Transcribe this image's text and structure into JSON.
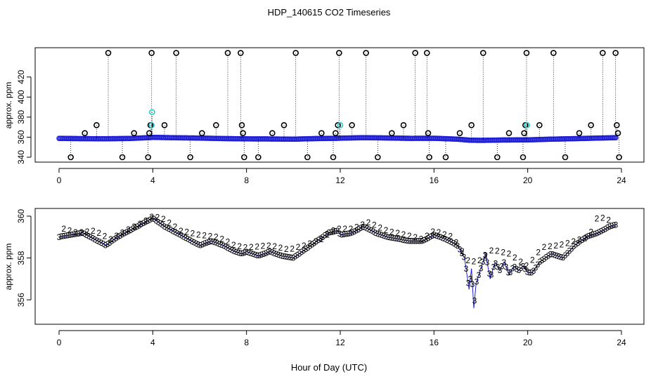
{
  "title": "HDP_140615  CO2 Timeseries",
  "xlabel": "Hour of Day (UTC)",
  "colors": {
    "blue": "#1f1fd6",
    "cyan": "#22cccc",
    "green": "#22cc22",
    "black": "#000000"
  },
  "chart_data": [
    {
      "type": "scatter",
      "ylabel": "approx. ppm",
      "xlim": [
        0,
        24
      ],
      "ylim": [
        340,
        445
      ],
      "xticks": [
        0,
        4,
        8,
        12,
        16,
        20,
        24
      ],
      "yticks": [
        340,
        360,
        380,
        400,
        420
      ],
      "ytick_labels": [
        "340",
        "360",
        "380",
        "400",
        "420"
      ],
      "series": [
        {
          "marker": "o",
          "color": "#1f1fd6",
          "baseline": [
            [
              0.0,
              358.8
            ],
            [
              1.0,
              358.5
            ],
            [
              2.0,
              358.4
            ],
            [
              3.0,
              358.7
            ],
            [
              3.9,
              359.6
            ],
            [
              4.0,
              359.8
            ],
            [
              5.0,
              359.4
            ],
            [
              6.0,
              359.1
            ],
            [
              7.0,
              358.6
            ],
            [
              8.0,
              358.3
            ],
            [
              9.0,
              358.2
            ],
            [
              10.0,
              358.0
            ],
            [
              11.0,
              358.6
            ],
            [
              11.9,
              358.9
            ],
            [
              12.0,
              359.0
            ],
            [
              13.0,
              359.5
            ],
            [
              14.0,
              359.2
            ],
            [
              15.0,
              358.8
            ],
            [
              16.0,
              358.9
            ],
            [
              17.0,
              358.0
            ],
            [
              17.5,
              357.0
            ],
            [
              18.0,
              356.8
            ],
            [
              19.0,
              357.2
            ],
            [
              20.0,
              357.3
            ],
            [
              21.0,
              358.0
            ],
            [
              22.0,
              358.5
            ],
            [
              23.0,
              359.1
            ],
            [
              23.8,
              359.5
            ]
          ]
        },
        {
          "marker": "o",
          "color": "#000000",
          "values": [
            [
              0.5,
              340
            ],
            [
              1.1,
              364
            ],
            [
              1.6,
              372
            ],
            [
              2.1,
              444
            ],
            [
              2.7,
              340
            ],
            [
              3.2,
              364
            ],
            [
              3.8,
              340
            ],
            [
              3.85,
              364
            ],
            [
              3.9,
              372
            ],
            [
              3.95,
              444
            ],
            [
              4.5,
              372
            ],
            [
              5.0,
              444
            ],
            [
              5.6,
              340
            ],
            [
              6.1,
              364
            ],
            [
              6.7,
              372
            ],
            [
              7.2,
              444
            ],
            [
              7.75,
              444
            ],
            [
              7.8,
              372
            ],
            [
              7.85,
              364
            ],
            [
              7.9,
              340
            ],
            [
              8.5,
              340
            ],
            [
              9.1,
              364
            ],
            [
              9.6,
              372
            ],
            [
              10.1,
              444
            ],
            [
              10.6,
              340
            ],
            [
              11.2,
              364
            ],
            [
              11.7,
              340
            ],
            [
              11.8,
              364
            ],
            [
              11.9,
              372
            ],
            [
              11.95,
              444
            ],
            [
              12.5,
              372
            ],
            [
              13.1,
              444
            ],
            [
              13.6,
              340
            ],
            [
              14.2,
              364
            ],
            [
              14.7,
              372
            ],
            [
              15.2,
              444
            ],
            [
              15.7,
              444
            ],
            [
              15.75,
              364
            ],
            [
              15.8,
              340
            ],
            [
              16.5,
              340
            ],
            [
              17.1,
              364
            ],
            [
              17.6,
              372
            ],
            [
              18.1,
              444
            ],
            [
              18.7,
              340
            ],
            [
              19.2,
              364
            ],
            [
              19.8,
              340
            ],
            [
              19.85,
              364
            ],
            [
              19.9,
              372
            ],
            [
              19.95,
              444
            ],
            [
              20.5,
              372
            ],
            [
              21.1,
              444
            ],
            [
              21.6,
              340
            ],
            [
              22.2,
              364
            ],
            [
              22.7,
              372
            ],
            [
              23.2,
              444
            ],
            [
              23.75,
              444
            ],
            [
              23.8,
              372
            ],
            [
              23.85,
              364
            ],
            [
              23.9,
              340
            ]
          ]
        },
        {
          "marker": "o",
          "color": "#22cccc",
          "values": [
            [
              3.95,
              372
            ],
            [
              3.97,
              385
            ],
            [
              12.0,
              372
            ],
            [
              19.97,
              372
            ]
          ]
        }
      ]
    },
    {
      "type": "scatter",
      "ylabel": "approx. ppm",
      "xlim": [
        0,
        24
      ],
      "ylim": [
        355,
        360.2
      ],
      "xticks": [
        0,
        4,
        8,
        12,
        16,
        20,
        24
      ],
      "yticks": [
        356,
        358,
        360
      ],
      "ytick_labels": [
        "356",
        "358",
        "360"
      ],
      "series": [
        {
          "marker": "3",
          "color": "#1f1fd6",
          "values": [
            [
              0.0,
              359.0
            ],
            [
              0.5,
              359.1
            ],
            [
              1.0,
              359.2
            ],
            [
              1.5,
              358.9
            ],
            [
              2.0,
              358.6
            ],
            [
              2.5,
              359.0
            ],
            [
              3.0,
              359.3
            ],
            [
              3.5,
              359.6
            ],
            [
              4.0,
              359.9
            ],
            [
              4.5,
              359.5
            ],
            [
              5.0,
              359.2
            ],
            [
              5.5,
              358.9
            ],
            [
              6.0,
              358.6
            ],
            [
              6.5,
              358.8
            ],
            [
              7.0,
              358.6
            ],
            [
              7.5,
              358.3
            ],
            [
              7.8,
              358.2
            ],
            [
              8.0,
              358.3
            ],
            [
              8.5,
              358.1
            ],
            [
              9.0,
              358.3
            ],
            [
              9.5,
              358.1
            ],
            [
              10.0,
              358.0
            ],
            [
              10.5,
              358.4
            ],
            [
              11.0,
              358.8
            ],
            [
              11.5,
              359.2
            ],
            [
              11.9,
              359.3
            ],
            [
              12.0,
              359.1
            ],
            [
              12.5,
              359.2
            ],
            [
              13.0,
              359.5
            ],
            [
              13.5,
              359.2
            ],
            [
              14.0,
              359.0
            ],
            [
              14.5,
              358.9
            ],
            [
              15.0,
              358.8
            ],
            [
              15.5,
              358.8
            ],
            [
              16.0,
              359.1
            ],
            [
              16.5,
              358.9
            ],
            [
              17.0,
              358.6
            ],
            [
              17.3,
              358.0
            ],
            [
              17.5,
              356.5
            ],
            [
              17.6,
              357.5
            ],
            [
              17.7,
              355.6
            ],
            [
              17.8,
              356.8
            ],
            [
              18.0,
              357.5
            ],
            [
              18.2,
              358.2
            ],
            [
              18.4,
              357.0
            ],
            [
              18.6,
              357.8
            ],
            [
              18.8,
              357.4
            ],
            [
              19.0,
              357.8
            ],
            [
              19.2,
              357.2
            ],
            [
              19.4,
              357.6
            ],
            [
              19.6,
              357.4
            ],
            [
              19.8,
              357.6
            ],
            [
              20.0,
              357.3
            ],
            [
              20.2,
              357.3
            ],
            [
              20.5,
              357.8
            ],
            [
              21.0,
              358.2
            ],
            [
              21.5,
              358.0
            ],
            [
              22.0,
              358.6
            ],
            [
              22.5,
              359.0
            ],
            [
              23.0,
              359.2
            ],
            [
              23.5,
              359.5
            ],
            [
              23.8,
              359.6
            ]
          ]
        },
        {
          "marker": "2",
          "color": "#22cc22",
          "values": [
            [
              0.2,
              359.4
            ],
            [
              0.8,
              359.2
            ],
            [
              1.5,
              359.3
            ],
            [
              2.2,
              358.9
            ],
            [
              3.0,
              359.4
            ],
            [
              3.6,
              359.7
            ],
            [
              4.0,
              360.0
            ],
            [
              4.4,
              359.9
            ],
            [
              5.2,
              359.3
            ],
            [
              6.0,
              359.1
            ],
            [
              6.8,
              359.0
            ],
            [
              7.5,
              358.6
            ],
            [
              8.0,
              358.5
            ],
            [
              9.0,
              358.6
            ],
            [
              9.8,
              358.4
            ],
            [
              10.5,
              358.6
            ],
            [
              11.2,
              358.9
            ],
            [
              11.8,
              359.4
            ],
            [
              12.5,
              359.4
            ],
            [
              13.2,
              359.7
            ],
            [
              14.0,
              359.3
            ],
            [
              14.8,
              359.1
            ],
            [
              15.5,
              358.9
            ],
            [
              16.0,
              359.3
            ],
            [
              16.8,
              359.0
            ],
            [
              17.5,
              357.8
            ],
            [
              18.0,
              357.9
            ],
            [
              18.5,
              358.4
            ],
            [
              19.2,
              358.2
            ],
            [
              20.0,
              357.6
            ],
            [
              20.6,
              358.5
            ],
            [
              21.3,
              358.6
            ],
            [
              22.0,
              358.8
            ],
            [
              22.6,
              359.0
            ],
            [
              23.0,
              360.0
            ],
            [
              23.5,
              359.8
            ]
          ]
        }
      ]
    }
  ]
}
